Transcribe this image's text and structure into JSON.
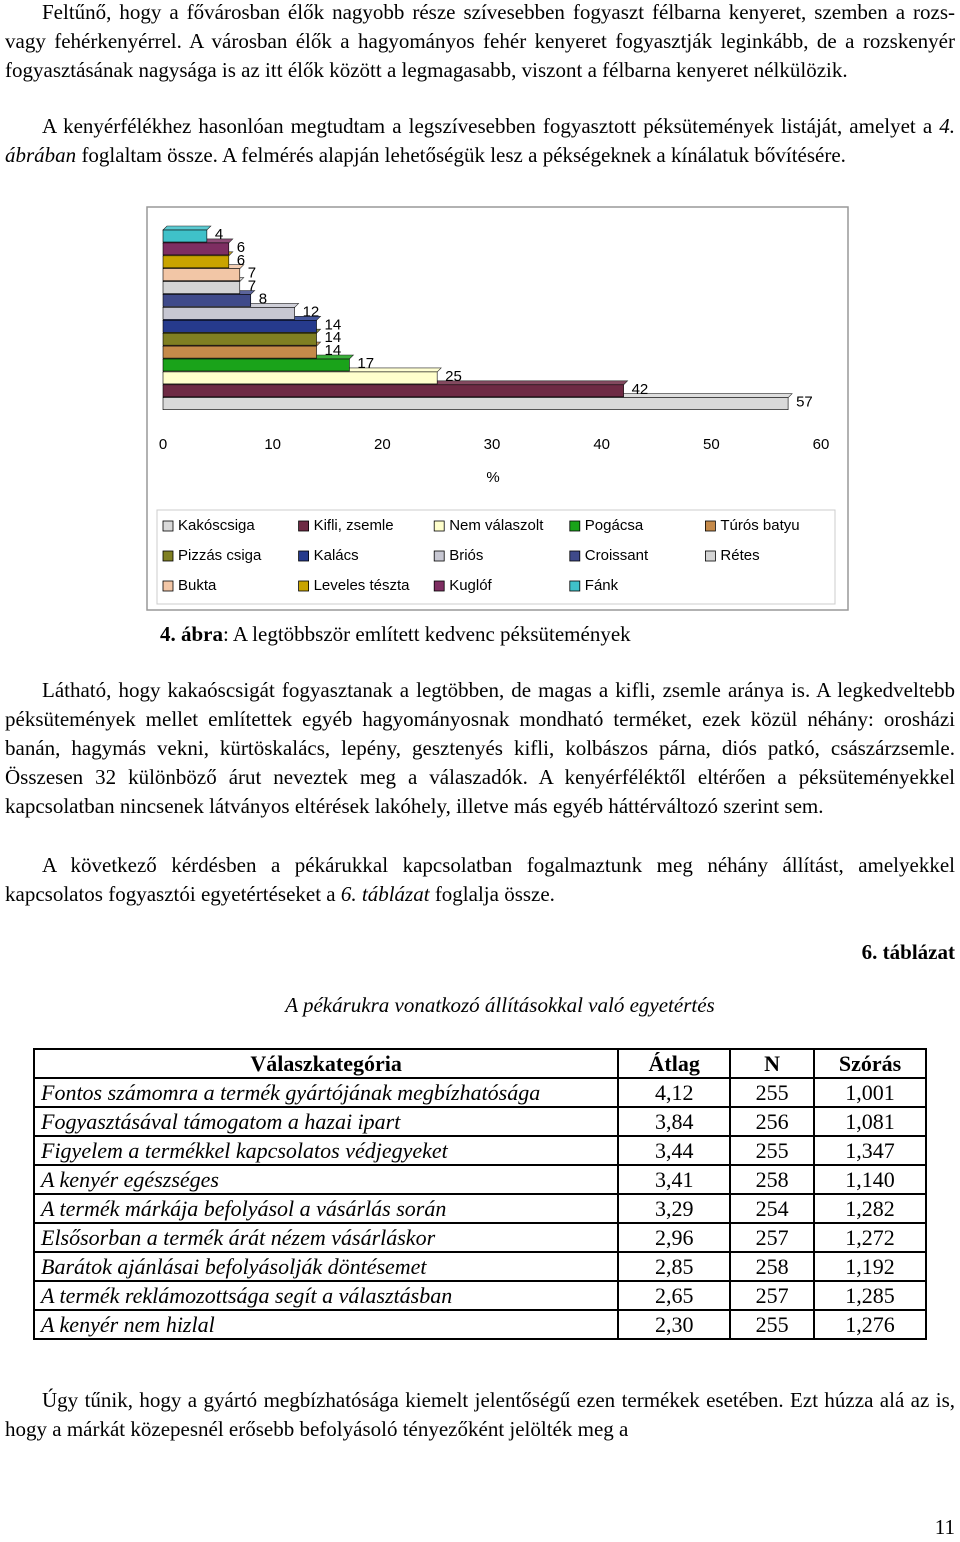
{
  "paragraphs": {
    "p1": "Feltűnő, hogy a fővárosban élők nagyobb része szívesebben fogyaszt félbarna kenyeret, szemben a rozs- vagy fehérkenyérrel. A városban élők a hagyományos fehér kenyeret fogyasztják leginkább, de a rozskenyér fogyasztásának nagysága is az itt élők között a legmagasabb, viszont a félbarna kenyeret nélkülözik.",
    "p2": [
      "A kenyérfélékhez hasonlóan megtudtam a legszívesebben fogyasztott péksütemények listáját, amelyet a ",
      "4. ábrában",
      " foglaltam össze. A felmérés alapján lehetőségük lesz a pékségeknek a kínálatuk bővítésére."
    ],
    "p3": "Látható, hogy kakaóscsigát fogyasztanak a legtöbben, de magas a kifli, zsemle aránya is. A legkedveltebb péksütemények mellet említettek egyéb hagyományosnak mondható terméket, ezek közül néhány: orosházi banán, hagymás vekni, kürtöskalács, lepény, gesztenyés kifli, kolbászos párna, diós patkó, császárzsemle. Összesen 32 különböző árut neveztek meg a válaszadók. A kenyérféléktől eltérően a péksüteményekkel kapcsolatban nincsenek látványos eltérések lakóhely, illetve más egyéb háttérváltozó szerint sem.",
    "p4": [
      "A következő kérdésben a pékárukkal kapcsolatban fogalmaztunk meg néhány állítást, amelyekkel kapcsolatos fogyasztói egyetértéseket a ",
      "6. táblázat",
      " foglalja össze."
    ],
    "p5": "Úgy tűnik, hogy a gyártó megbízhatósága kiemelt jelentőségű ezen termékek esetében. Ezt húzza alá az is, hogy a márkát közepesnél erősebb befolyásoló tényezőként jelölték meg a"
  },
  "caption": [
    "4. ábra",
    ": A legtöbbször említett kedvenc péksütemények"
  ],
  "chart_data": {
    "type": "bar",
    "orientation": "horizontal",
    "xlabel": "%",
    "xlim": [
      0,
      60
    ],
    "xticks": [
      0,
      10,
      20,
      30,
      40,
      50,
      60
    ],
    "series": [
      {
        "name": "Kakóscsiga",
        "color": "#d9d9d9",
        "values": [
          57
        ]
      },
      {
        "name": "Kifli, zsemle",
        "color": "#6e2a44",
        "values": [
          42
        ]
      },
      {
        "name": "Nem válaszolt",
        "color": "#ffffcc",
        "values": [
          25
        ]
      },
      {
        "name": "Pogácsa",
        "color": "#1aa31a",
        "values": [
          17
        ]
      },
      {
        "name": "Túrós batyu",
        "color": "#c58a4a",
        "values": [
          14
        ]
      },
      {
        "name": "Pizzás csiga",
        "color": "#7f7f22",
        "values": [
          14
        ]
      },
      {
        "name": "Kalács",
        "color": "#263a8c",
        "values": [
          14
        ]
      },
      {
        "name": "Briós",
        "color": "#c7c7d2",
        "values": [
          12
        ]
      },
      {
        "name": "Croissant",
        "color": "#3f4a8a",
        "values": [
          8
        ]
      },
      {
        "name": "Rétes",
        "color": "#d4d4d4",
        "values": [
          7
        ]
      },
      {
        "name": "Bukta",
        "color": "#f2c6a6",
        "values": [
          7
        ]
      },
      {
        "name": "Leveles tészta",
        "color": "#c9a400",
        "values": [
          6
        ]
      },
      {
        "name": "Kuglóf",
        "color": "#7e2e62",
        "values": [
          6
        ]
      },
      {
        "name": "Fánk",
        "color": "#3fc1c9",
        "values": [
          4
        ]
      }
    ]
  },
  "table_label": "6. táblázat",
  "table_title": "A pékárukra vonatkozó állításokkal való egyetértés",
  "table": {
    "header": [
      "Válaszkategória",
      "Átlag",
      "N",
      "Szórás"
    ],
    "rows": [
      [
        "Fontos számomra a termék gyártójának megbízhatósága",
        "4,12",
        "255",
        "1,001"
      ],
      [
        "Fogyasztásával támogatom a hazai ipart",
        "3,84",
        "256",
        "1,081"
      ],
      [
        "Figyelem a termékkel kapcsolatos védjegyeket",
        "3,44",
        "255",
        "1,347"
      ],
      [
        "A kenyér egészséges",
        "3,41",
        "258",
        "1,140"
      ],
      [
        "A termék márkája befolyásol a vásárlás során",
        "3,29",
        "254",
        "1,282"
      ],
      [
        "Elsősorban a termék árát nézem vásárláskor",
        "2,96",
        "257",
        "1,272"
      ],
      [
        "Barátok ajánlásai befolyásolják döntésemet",
        "2,85",
        "258",
        "1,192"
      ],
      [
        "A termék reklámozottsága segít a választásban",
        "2,65",
        "257",
        "1,285"
      ],
      [
        "A kenyér nem hizlal",
        "2,30",
        "255",
        "1,276"
      ]
    ]
  },
  "page_number": "11"
}
